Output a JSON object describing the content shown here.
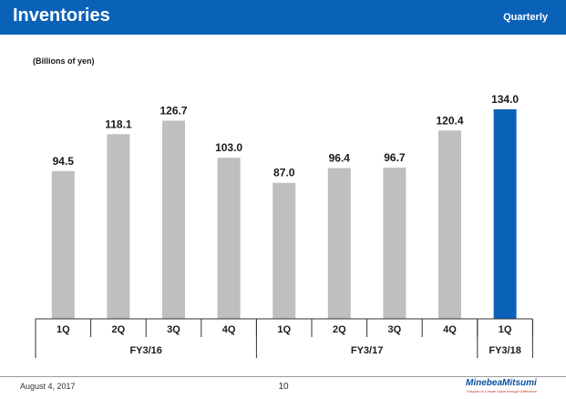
{
  "header": {
    "title": "Inventories",
    "period": "Quarterly"
  },
  "colors": {
    "header_bg": "#0a62b8",
    "bar_default": "#bfbfbf",
    "bar_highlight": "#0a62b8",
    "text": "#1a1a1a"
  },
  "chart_data": {
    "type": "bar",
    "unit_label": "(Billions of yen)",
    "categories": [
      "1Q",
      "2Q",
      "3Q",
      "4Q",
      "1Q",
      "2Q",
      "3Q",
      "4Q",
      "1Q"
    ],
    "values": [
      94.5,
      118.1,
      126.7,
      103.0,
      87.0,
      96.4,
      96.7,
      120.4,
      134.0
    ],
    "value_labels": [
      "94.5",
      "118.1",
      "126.7",
      "103.0",
      "87.0",
      "96.4",
      "96.7",
      "120.4",
      "134.0"
    ],
    "fiscal_groups": [
      {
        "label": "FY3/16",
        "count": 4
      },
      {
        "label": "FY3/17",
        "count": 4
      },
      {
        "label": "FY3/18",
        "count": 1
      }
    ],
    "highlight_index": 8,
    "ylim": [
      0,
      134.0
    ],
    "grid": false,
    "legend": "none"
  },
  "footer": {
    "date": "August 4, 2017",
    "page": "10",
    "logo_name": "MinebeaMitsumi",
    "logo_tagline": "Passion to Create Value through Difference"
  }
}
